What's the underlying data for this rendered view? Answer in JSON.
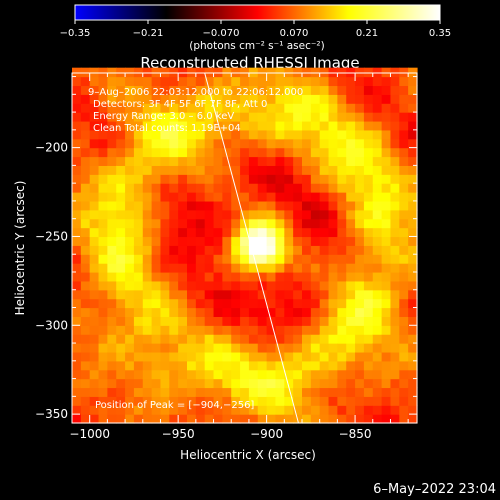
{
  "chart_data": {
    "type": "heatmap",
    "title": "Reconstructed RHESSI Image",
    "xlabel": "Heliocentric X (arcsec)",
    "ylabel": "Heliocentric Y (arcsec)",
    "xlim": [
      -1010,
      -815
    ],
    "ylim": [
      -355,
      -158
    ],
    "x_ticks": [
      "−1000",
      "−950",
      "−900",
      "−850"
    ],
    "x_tick_values": [
      -1000,
      -950,
      -900,
      -850
    ],
    "y_ticks": [
      "−200",
      "−250",
      "−300",
      "−350"
    ],
    "y_tick_values": [
      -200,
      -250,
      -300,
      -350
    ],
    "colorbar": {
      "min": -0.35,
      "max": 0.35,
      "ticks": [
        "−0.35",
        "−0.21",
        "−0.070",
        "0.070",
        "0.21",
        "0.35"
      ],
      "tick_values": [
        -0.35,
        -0.21,
        -0.07,
        0.07,
        0.21,
        0.35
      ],
      "unit_label": "(photons cm⁻² s⁻¹ asec⁻²)",
      "colormap": [
        "#0000ff",
        "#000000",
        "#ff0000",
        "#ffff00",
        "#ffffff"
      ]
    },
    "info_lines": [
      "9–Aug–2006 22:03:12.000 to 22:06:12.000",
      "Detectors: 3F 4F 5F 6F 7F 8F, Att 0",
      "Energy Range: 3.0 – 6.0 keV",
      "Clean     Total counts: 1.19E+04"
    ],
    "peak_label": "Position of Peak = [−904,−256]",
    "peak": {
      "x": -904,
      "y": -256,
      "value": 0.35
    },
    "limb_line": [
      [
        -935,
        -158
      ],
      [
        -882,
        -355
      ]
    ],
    "ring": {
      "center": [
        -910,
        -255
      ],
      "radius": 75,
      "value": 0.11
    },
    "background_value": 0.05,
    "trough_value": -0.04
  },
  "footer": {
    "timestamp": "6–May–2022 23:04"
  }
}
